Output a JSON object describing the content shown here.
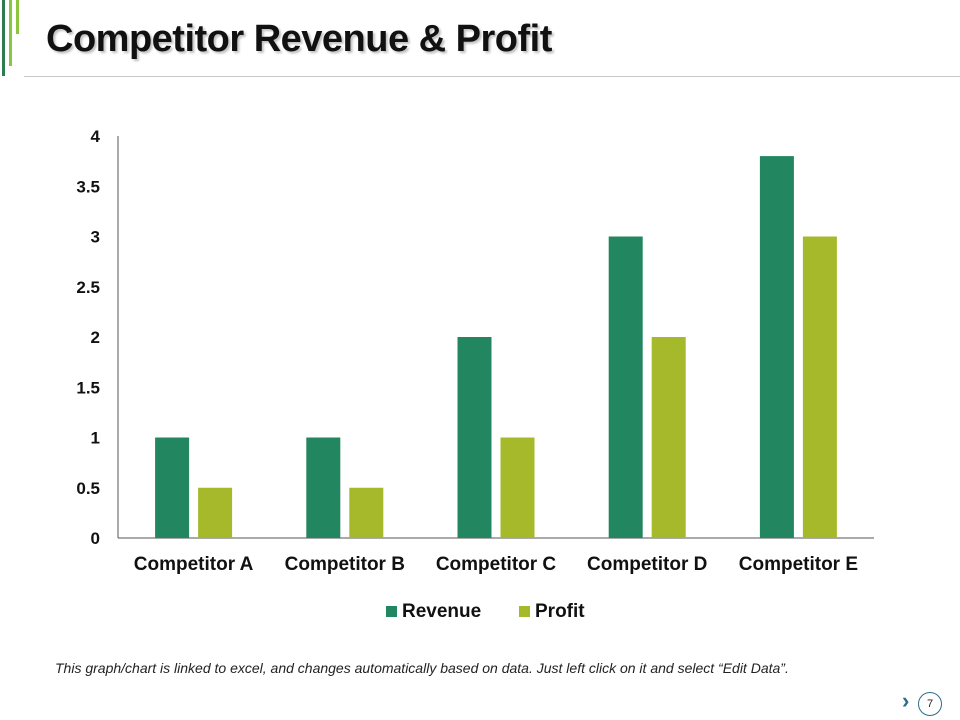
{
  "slide": {
    "title": "Competitor Revenue & Profit",
    "footnote": "This graph/chart is linked to excel, and changes automatically based on data. Just left click on it and select “Edit Data”.",
    "page_number": "7",
    "next_icon": "chevron-right-icon"
  },
  "colors": {
    "revenue": "#228760",
    "profit": "#a5b92b",
    "accent_dark": "#2e7d4f",
    "accent_light": "#8cc63f"
  },
  "chart_data": {
    "type": "bar",
    "title": "",
    "xlabel": "",
    "ylabel": "",
    "categories": [
      "Competitor A",
      "Competitor B",
      "Competitor C",
      "Competitor D",
      "Competitor E"
    ],
    "series": [
      {
        "name": "Revenue",
        "values": [
          1,
          1,
          2,
          3,
          3.8
        ]
      },
      {
        "name": "Profit",
        "values": [
          0.5,
          0.5,
          1,
          2,
          3
        ]
      }
    ],
    "ylim": [
      0,
      4
    ],
    "yticks": [
      "0",
      "0.5",
      "1",
      "1.5",
      "2",
      "2.5",
      "3",
      "3.5",
      "4"
    ],
    "grid": false,
    "legend_position": "bottom"
  }
}
